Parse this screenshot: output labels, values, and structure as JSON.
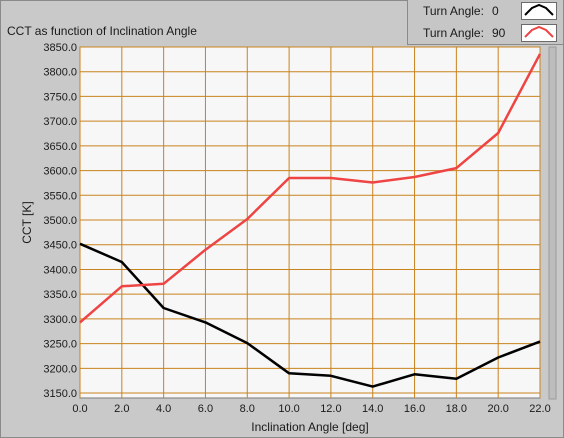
{
  "chart_data": {
    "type": "line",
    "title": "CCT as function of Inclination Angle",
    "xlabel": "Inclination Angle [deg]",
    "ylabel": "CCT [K]",
    "xlim": [
      0,
      22
    ],
    "ylim": [
      3140,
      3850
    ],
    "x_ticks": [
      "0.0",
      "2.0",
      "4.0",
      "6.0",
      "8.0",
      "10.0",
      "12.0",
      "14.0",
      "16.0",
      "18.0",
      "20.0",
      "22.0"
    ],
    "y_ticks": [
      "3150.0",
      "3200.0",
      "3250.0",
      "3300.0",
      "3350.0",
      "3400.0",
      "3450.0",
      "3500.0",
      "3550.0",
      "3600.0",
      "3650.0",
      "3700.0",
      "3750.0",
      "3800.0",
      "3850.0"
    ],
    "grid": true,
    "legend_position": "top-right",
    "x": [
      0,
      2,
      4,
      6,
      8,
      10,
      12,
      14,
      16,
      18,
      20,
      22
    ],
    "series": [
      {
        "name": "Turn Angle:",
        "legend_value": "0",
        "color": "#000000",
        "values": [
          3452,
          3415,
          3322,
          3293,
          3251,
          3190,
          3185,
          3163,
          3188,
          3179,
          3222,
          3254
        ]
      },
      {
        "name": "Turn Angle:",
        "legend_value": "90",
        "color": "#ee4444",
        "values": [
          3293,
          3366,
          3371,
          3440,
          3502,
          3585,
          3585,
          3576,
          3587,
          3605,
          3676,
          3836
        ]
      }
    ]
  },
  "colors": {
    "plot_background": "#f7f7f7",
    "grid": "#c8831e",
    "panel": "#c9c9c9"
  }
}
